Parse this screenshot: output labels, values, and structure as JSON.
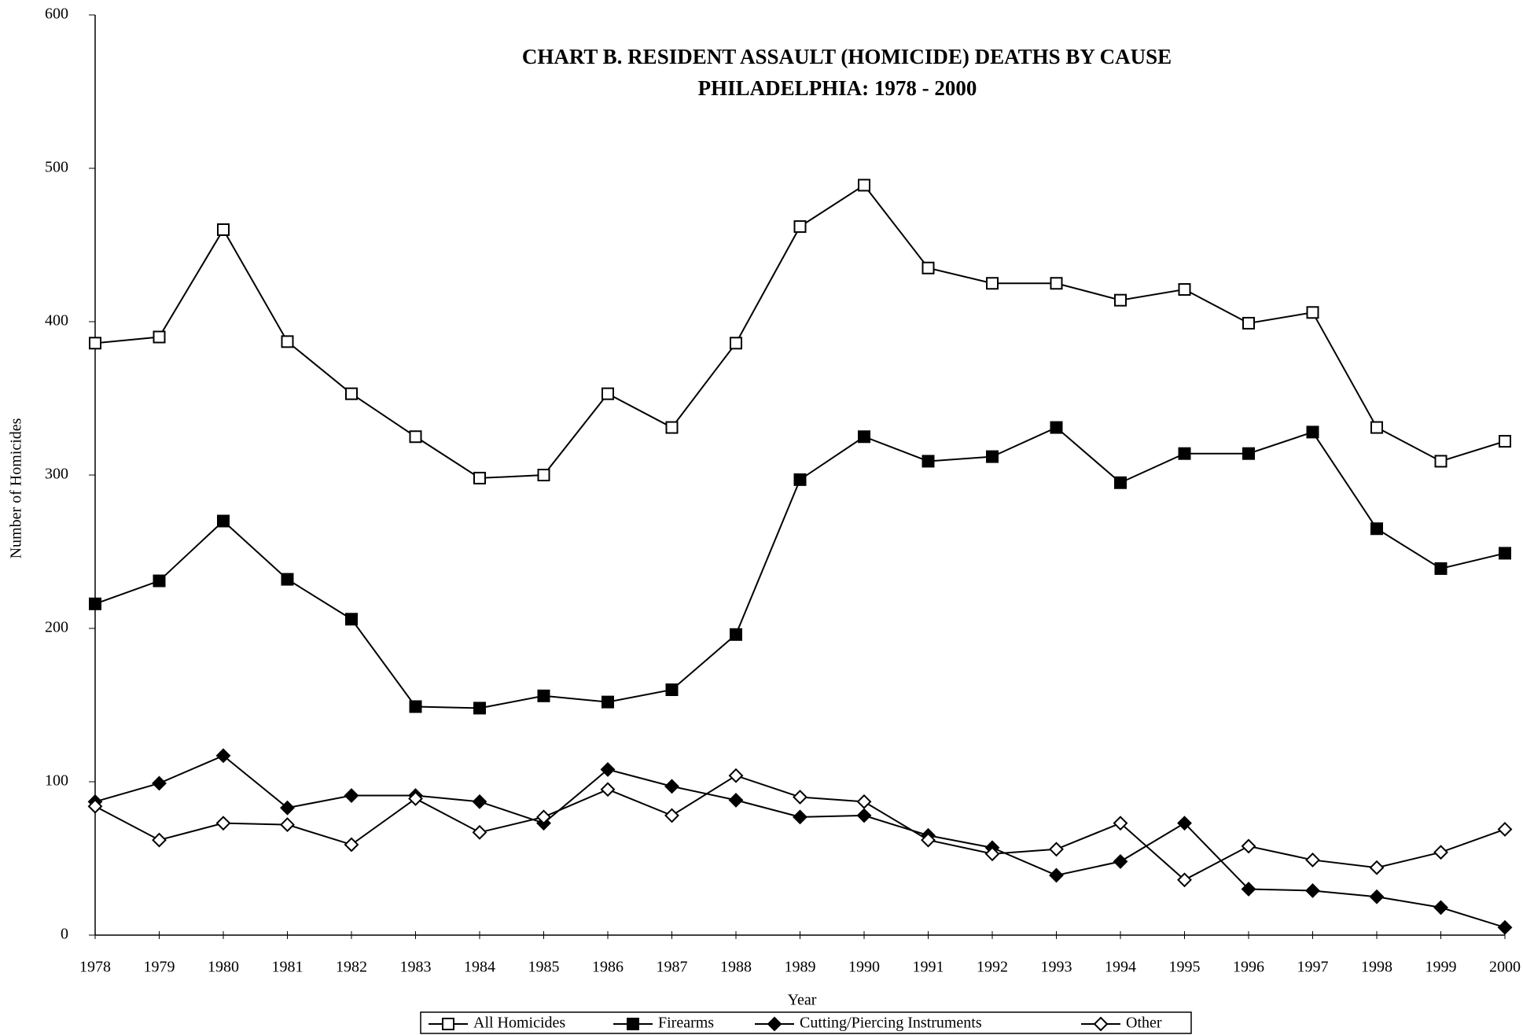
{
  "chart_data": {
    "type": "line",
    "title": "CHART B.  RESIDENT ASSAULT (HOMICIDE) DEATHS BY CAUSE",
    "subtitle": "PHILADELPHIA: 1978 - 2000",
    "x_label": "Year",
    "y_label": "Number of Homicides",
    "categories": [
      "1978",
      "1979",
      "1980",
      "1981",
      "1982",
      "1983",
      "1984",
      "1985",
      "1986",
      "1987",
      "1988",
      "1989",
      "1990",
      "1991",
      "1992",
      "1993",
      "1994",
      "1995",
      "1996",
      "1997",
      "1998",
      "1999",
      "2000"
    ],
    "series": [
      {
        "name": "All Homicides",
        "color": "#000000",
        "marker": "square-open",
        "values": [
          386,
          390,
          460,
          387,
          353,
          325,
          298,
          300,
          353,
          331,
          386,
          462,
          489,
          435,
          425,
          425,
          414,
          421,
          399,
          406,
          331,
          309,
          322
        ]
      },
      {
        "name": "Firearms",
        "color": "#000000",
        "marker": "square-filled",
        "values": [
          216,
          231,
          270,
          232,
          206,
          149,
          148,
          156,
          152,
          160,
          196,
          297,
          325,
          309,
          312,
          331,
          295,
          314,
          314,
          328,
          265,
          239,
          249
        ]
      },
      {
        "name": "Cutting/Piercing Instruments",
        "color": "#000000",
        "marker": "diamond-filled",
        "values": [
          87,
          99,
          117,
          83,
          91,
          91,
          87,
          73,
          108,
          97,
          88,
          77,
          78,
          65,
          57,
          39,
          48,
          73,
          30,
          29,
          25,
          18,
          5
        ]
      },
      {
        "name": "Other",
        "color": "#000000",
        "marker": "diamond-open",
        "values": [
          84,
          62,
          73,
          72,
          59,
          89,
          67,
          77,
          95,
          78,
          104,
          90,
          87,
          62,
          53,
          56,
          73,
          36,
          58,
          49,
          44,
          54,
          69
        ]
      }
    ],
    "ylim": [
      0,
      600
    ],
    "yticks": [
      0,
      100,
      200,
      300,
      400,
      500,
      600
    ],
    "grid": false,
    "legend": "bottom"
  }
}
